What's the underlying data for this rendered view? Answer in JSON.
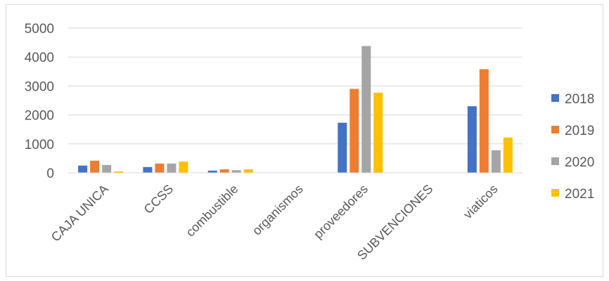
{
  "chart_data": {
    "type": "bar",
    "categories": [
      "CAJA UNICA",
      "CCSS",
      "combustible",
      "organismos",
      "proveedores",
      "SUBVENCIONES",
      "viaticos"
    ],
    "series": [
      {
        "name": "2018",
        "color": "#4472c4",
        "values": [
          250,
          200,
          75,
          0,
          1730,
          0,
          2300
        ]
      },
      {
        "name": "2019",
        "color": "#ed7d31",
        "values": [
          420,
          320,
          120,
          0,
          2900,
          0,
          3580
        ]
      },
      {
        "name": "2020",
        "color": "#a5a5a5",
        "values": [
          270,
          320,
          90,
          0,
          4380,
          0,
          780
        ]
      },
      {
        "name": "2021",
        "color": "#ffc000",
        "values": [
          50,
          390,
          120,
          0,
          2770,
          0,
          1220
        ]
      }
    ],
    "yticks": [
      "0",
      "1000",
      "2000",
      "3000",
      "4000",
      "5000"
    ],
    "ylim": [
      0,
      5000
    ],
    "grid": true,
    "legend_position": "right",
    "title": "",
    "xlabel": "",
    "ylabel": ""
  }
}
